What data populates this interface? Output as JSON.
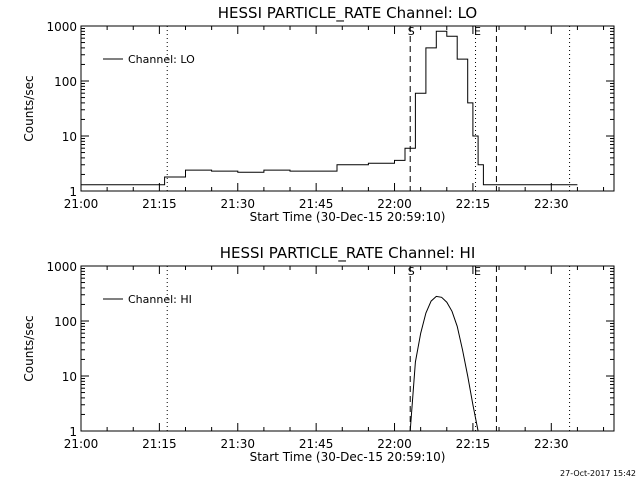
{
  "chart_data": [
    {
      "type": "line",
      "title": "HESSI PARTICLE_RATE Channel: LO",
      "xlabel": "Start Time (30-Dec-15 20:59:10)",
      "ylabel": "Counts/sec",
      "y_scale": "log",
      "ylim": [
        1,
        1000
      ],
      "x_tick_labels": [
        "21:00",
        "21:15",
        "21:30",
        "21:45",
        "22:00",
        "22:15",
        "22:30"
      ],
      "y_tick_labels": [
        "1",
        "10",
        "100",
        "1000"
      ],
      "y_ticks": [
        1,
        10,
        100,
        1000
      ],
      "legend_placement": "top-left",
      "markers": {
        "start": "S",
        "end": "E"
      },
      "series": [
        {
          "name": "Channel: LO",
          "x": [
            "21:00",
            "21:05",
            "21:10",
            "21:15",
            "21:16",
            "21:20",
            "21:25",
            "21:30",
            "21:35",
            "21:40",
            "21:45",
            "21:49",
            "21:55",
            "22:00",
            "22:02",
            "22:04",
            "22:06",
            "22:08",
            "22:10",
            "22:12",
            "22:14",
            "22:15",
            "22:16",
            "22:17",
            "22:20",
            "22:25",
            "22:30",
            "22:35"
          ],
          "values": [
            1.3,
            1.3,
            1.3,
            1.3,
            1.8,
            2.4,
            2.3,
            2.2,
            2.4,
            2.3,
            2.3,
            3.0,
            3.2,
            3.6,
            6,
            60,
            400,
            800,
            650,
            250,
            40,
            10,
            3,
            1.3,
            1.3,
            1.3,
            1.3,
            1.3
          ]
        }
      ]
    },
    {
      "type": "line",
      "title": "HESSI PARTICLE_RATE Channel: HI",
      "xlabel": "Start Time (30-Dec-15 20:59:10)",
      "ylabel": "Counts/sec",
      "y_scale": "log",
      "ylim": [
        1,
        1000
      ],
      "x_tick_labels": [
        "21:00",
        "21:15",
        "21:30",
        "21:45",
        "22:00",
        "22:15",
        "22:30"
      ],
      "y_tick_labels": [
        "1",
        "10",
        "100",
        "1000"
      ],
      "y_ticks": [
        1,
        10,
        100,
        1000
      ],
      "legend_placement": "top-left",
      "markers": {
        "start": "S",
        "end": "E"
      },
      "series": [
        {
          "name": "Channel: HI",
          "x": [
            "22:03",
            "22:04",
            "22:05",
            "22:06",
            "22:07",
            "22:08",
            "22:09",
            "22:10",
            "22:11",
            "22:12",
            "22:13",
            "22:14",
            "22:15",
            "22:16"
          ],
          "values": [
            1,
            18,
            60,
            140,
            230,
            280,
            270,
            220,
            150,
            80,
            30,
            10,
            3,
            1
          ]
        }
      ]
    }
  ],
  "footer": {
    "timestamp": "27-Oct-2017 15:42"
  }
}
